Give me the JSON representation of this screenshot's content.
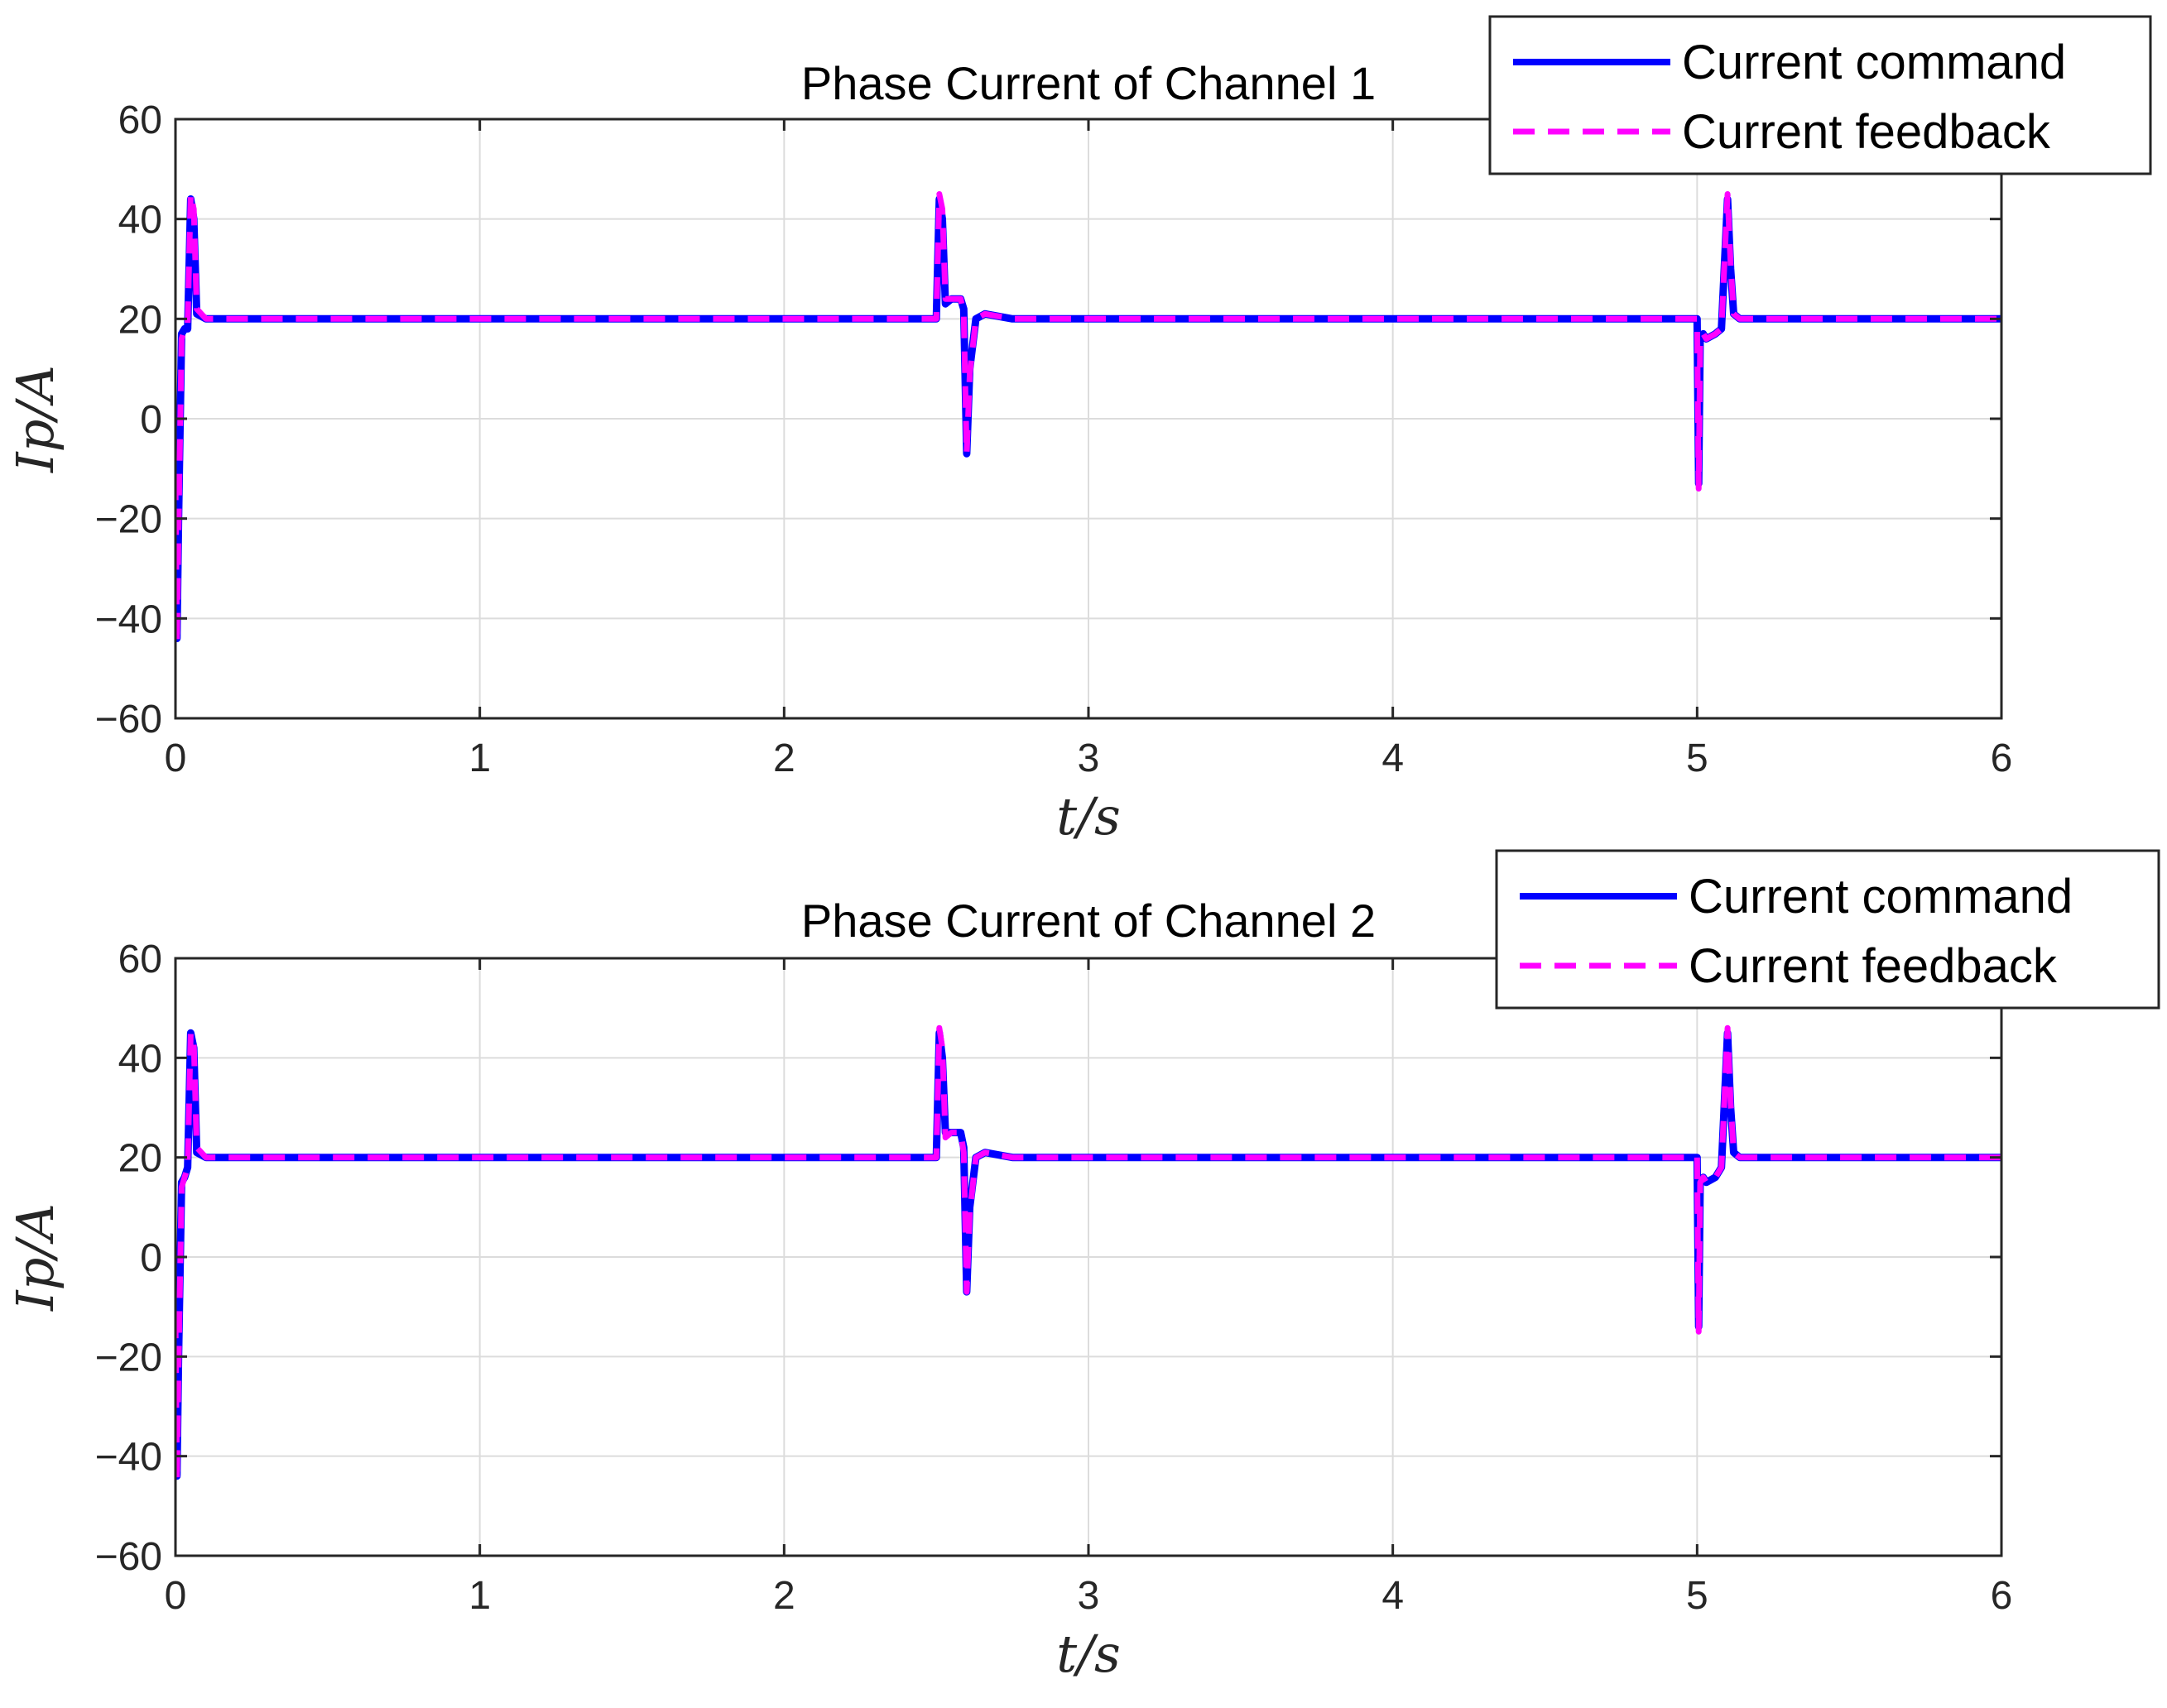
{
  "chart_data": [
    {
      "type": "line",
      "title": "Phase Current of Channel 1",
      "xlabel": "t/s",
      "ylabel": "Ip/A",
      "xlim": [
        0,
        6
      ],
      "ylim": [
        -60,
        60
      ],
      "xticks": [
        0,
        1,
        2,
        3,
        4,
        5,
        6
      ],
      "yticks": [
        -60,
        -40,
        -20,
        0,
        20,
        40,
        60
      ],
      "grid": true,
      "legend_position": "top-right",
      "series": [
        {
          "name": "Current command",
          "color": "#0000ff",
          "style": "solid",
          "x": [
            0,
            0.005,
            0.01,
            0.02,
            0.03,
            0.04,
            0.05,
            0.06,
            0.07,
            0.1,
            0.15,
            0.2,
            0.3,
            2.5,
            2.51,
            2.52,
            2.53,
            2.55,
            2.58,
            2.59,
            2.6,
            2.61,
            2.63,
            2.66,
            2.75,
            2.9,
            5.0,
            5.005,
            5.01,
            5.02,
            5.03,
            5.06,
            5.08,
            5.1,
            5.11,
            5.12,
            5.14,
            5.2,
            5.3,
            6.0
          ],
          "y": [
            -10,
            -44,
            -20,
            17,
            18,
            18,
            44,
            40,
            21,
            20,
            20,
            20,
            20,
            20,
            44,
            40,
            23,
            24,
            24,
            22,
            -7,
            10,
            20,
            21,
            20,
            20,
            20,
            -13,
            16,
            17,
            16,
            17,
            18,
            44,
            30,
            21,
            20,
            20,
            20,
            20
          ]
        },
        {
          "name": "Current feedback",
          "color": "#ff00ff",
          "style": "dashed",
          "x": [
            0,
            0.005,
            0.01,
            0.02,
            0.03,
            0.04,
            0.05,
            0.06,
            0.07,
            0.1,
            0.15,
            0.2,
            0.3,
            2.5,
            2.51,
            2.52,
            2.53,
            2.55,
            2.58,
            2.59,
            2.6,
            2.61,
            2.63,
            2.66,
            2.75,
            2.9,
            5.0,
            5.005,
            5.01,
            5.02,
            5.03,
            5.06,
            5.08,
            5.1,
            5.11,
            5.12,
            5.14,
            5.2,
            5.3,
            6.0
          ],
          "y": [
            -12,
            -45,
            -22,
            16,
            18,
            19,
            45,
            42,
            22,
            20,
            20,
            20,
            20,
            20,
            45,
            42,
            24,
            24,
            24,
            21,
            -7,
            9,
            20,
            21,
            20,
            20,
            20,
            -14,
            15,
            17,
            16,
            17,
            18,
            45,
            31,
            21,
            20,
            20,
            20,
            20
          ]
        }
      ]
    },
    {
      "type": "line",
      "title": "Phase Current of Channel 2",
      "xlabel": "t/s",
      "ylabel": "Ip/A",
      "xlim": [
        0,
        6
      ],
      "ylim": [
        -60,
        60
      ],
      "xticks": [
        0,
        1,
        2,
        3,
        4,
        5,
        6
      ],
      "yticks": [
        -60,
        -40,
        -20,
        0,
        20,
        40,
        60
      ],
      "grid": true,
      "legend_position": "top-right",
      "series": [
        {
          "name": "Current command",
          "color": "#0000ff",
          "style": "solid",
          "x": [
            0,
            0.005,
            0.01,
            0.02,
            0.03,
            0.04,
            0.05,
            0.06,
            0.07,
            0.1,
            0.15,
            0.2,
            0.3,
            2.5,
            2.51,
            2.52,
            2.53,
            2.55,
            2.58,
            2.59,
            2.6,
            2.61,
            2.63,
            2.66,
            2.75,
            2.9,
            5.0,
            5.005,
            5.01,
            5.02,
            5.03,
            5.06,
            5.08,
            5.1,
            5.11,
            5.12,
            5.14,
            5.2,
            5.3,
            6.0
          ],
          "y": [
            -10,
            -44,
            -20,
            15,
            16,
            18,
            45,
            42,
            21,
            20,
            20,
            20,
            20,
            20,
            45,
            40,
            25,
            25,
            25,
            22,
            -7,
            10,
            20,
            21,
            20,
            20,
            20,
            -14,
            15,
            16,
            15,
            16,
            18,
            45,
            30,
            21,
            20,
            20,
            20,
            20
          ]
        },
        {
          "name": "Current feedback",
          "color": "#ff00ff",
          "style": "dashed",
          "x": [
            0,
            0.005,
            0.01,
            0.02,
            0.03,
            0.04,
            0.05,
            0.06,
            0.07,
            0.1,
            0.15,
            0.2,
            0.3,
            2.5,
            2.51,
            2.52,
            2.53,
            2.55,
            2.58,
            2.59,
            2.6,
            2.61,
            2.63,
            2.66,
            2.75,
            2.9,
            5.0,
            5.005,
            5.01,
            5.02,
            5.03,
            5.06,
            5.08,
            5.1,
            5.11,
            5.12,
            5.14,
            5.2,
            5.3,
            6.0
          ],
          "y": [
            -12,
            -45,
            -22,
            14,
            16,
            18,
            45,
            43,
            22,
            20,
            20,
            20,
            20,
            20,
            46,
            42,
            24,
            25,
            25,
            21,
            -7,
            9,
            20,
            21,
            20,
            20,
            20,
            -15,
            15,
            16,
            15,
            16,
            18,
            46,
            31,
            21,
            20,
            20,
            20,
            20
          ]
        }
      ]
    }
  ]
}
